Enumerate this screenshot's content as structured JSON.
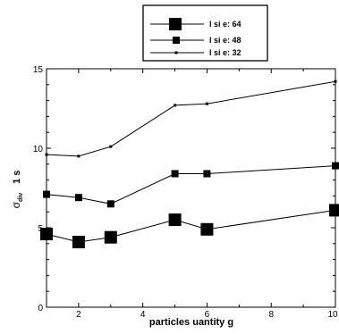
{
  "chart_data": {
    "type": "line",
    "title": "",
    "xlabel": "particles  uantity  g",
    "ylabel": "1 s",
    "ylabel_symbol": "σ",
    "ylabel_subscript": "div",
    "xlim": [
      1,
      10
    ],
    "ylim": [
      0,
      15
    ],
    "x_ticks": [
      2,
      4,
      6,
      8,
      10
    ],
    "x_tick_labels": [
      "2",
      "4",
      "6",
      "8",
      "10"
    ],
    "y_ticks": [
      0,
      5,
      10,
      15
    ],
    "y_tick_labels": [
      "0",
      "5",
      "10",
      "15"
    ],
    "grid": false,
    "legend_position": "top-center",
    "x": [
      1,
      2,
      3,
      5,
      6,
      10
    ],
    "series": [
      {
        "name": "l    si e: 64",
        "marker": "large-square",
        "values": [
          4.6,
          4.1,
          4.4,
          5.5,
          4.9,
          6.1
        ]
      },
      {
        "name": "l    si e: 48",
        "marker": "medium-square",
        "values": [
          7.1,
          6.9,
          6.5,
          8.4,
          8.4,
          8.9
        ]
      },
      {
        "name": "l    si e: 32",
        "marker": "small-square",
        "values": [
          9.6,
          9.5,
          10.1,
          12.7,
          12.8,
          14.2
        ]
      }
    ]
  }
}
